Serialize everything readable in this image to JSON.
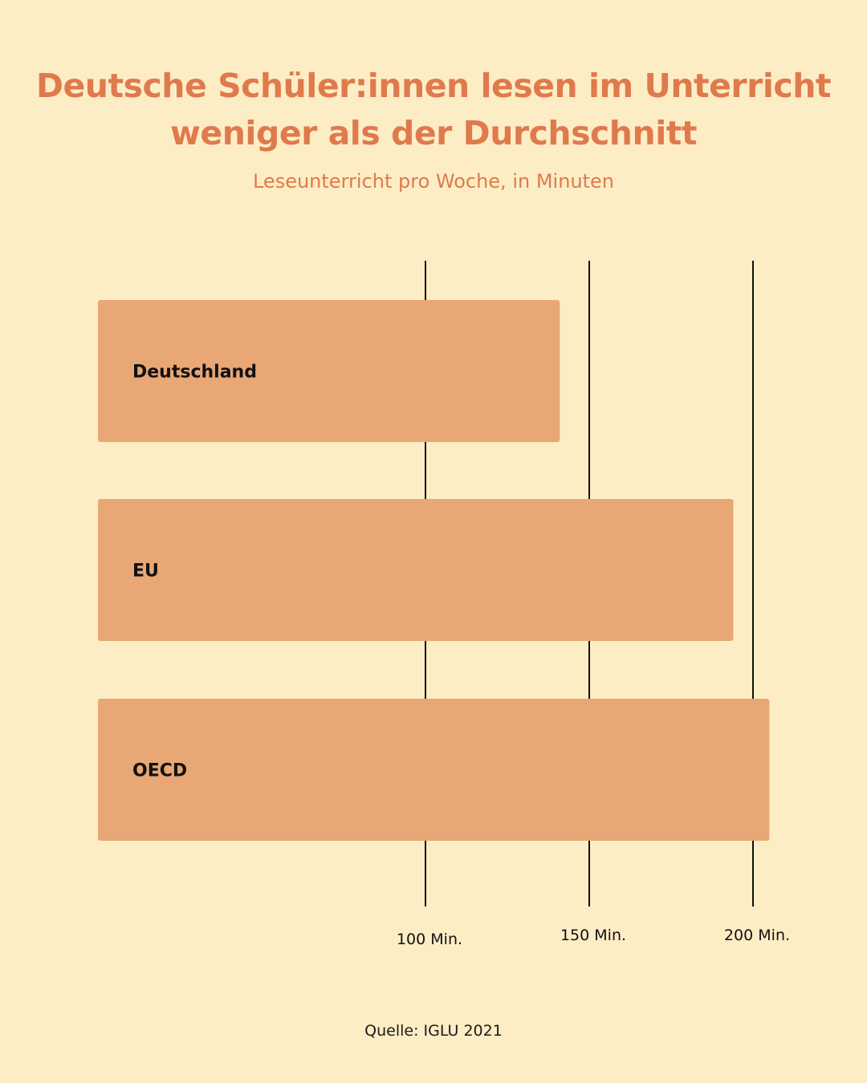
{
  "colors": {
    "background": "#fdedc5",
    "accent": "#df7a4d",
    "bar": "#e8a775",
    "text": "#111111"
  },
  "chart_data": {
    "type": "bar",
    "orientation": "horizontal",
    "title": "Deutsche Schüler:innen lesen im Unterricht weniger als der Durchschnitt",
    "subtitle": "Leseunterricht pro Woche, in Minuten",
    "categories": [
      "Deutschland",
      "EU",
      "OECD"
    ],
    "values": [
      141,
      194,
      205
    ],
    "xlim": [
      0,
      200
    ],
    "ticks": [
      {
        "value": 100,
        "label": "100 Min."
      },
      {
        "value": 150,
        "label": "150 Min."
      },
      {
        "value": 200,
        "label": "200 Min."
      }
    ],
    "grid": true,
    "source": "Quelle: IGLU 2021"
  }
}
